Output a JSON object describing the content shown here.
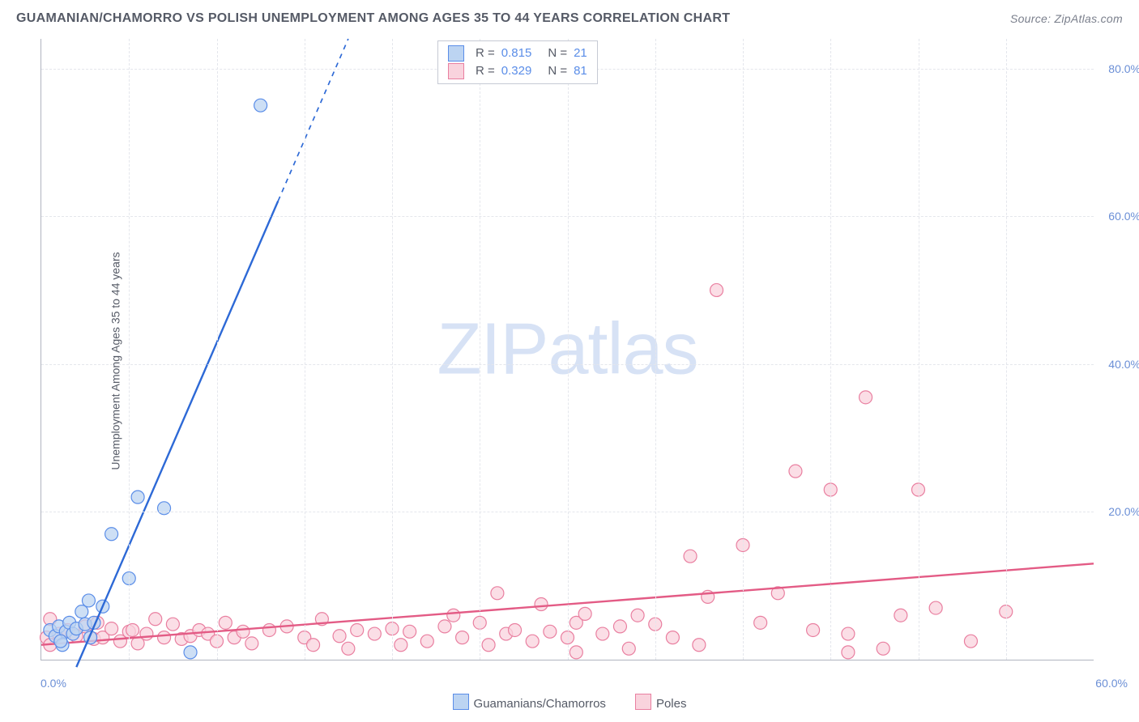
{
  "title": "GUAMANIAN/CHAMORRO VS POLISH UNEMPLOYMENT AMONG AGES 35 TO 44 YEARS CORRELATION CHART",
  "source": "Source: ZipAtlas.com",
  "ylabel": "Unemployment Among Ages 35 to 44 years",
  "watermark_a": "ZIP",
  "watermark_b": "atlas",
  "chart": {
    "type": "scatter",
    "xlim": [
      0,
      60
    ],
    "ylim": [
      0,
      84
    ],
    "x_ticks": [
      0,
      60
    ],
    "y_ticks": [
      20,
      40,
      60,
      80
    ],
    "x_tick_labels": [
      "0.0%",
      "60.0%"
    ],
    "y_tick_labels": [
      "20.0%",
      "40.0%",
      "60.0%",
      "80.0%"
    ],
    "background_color": "#ffffff",
    "grid_color": "#e4e6ec",
    "axis_color": "#b0b4c0",
    "text_color": "#555a66",
    "tick_text_color": "#6b8fd6",
    "marker_radius": 8,
    "marker_stroke_width": 1.2,
    "line_width": 2.4,
    "series": [
      {
        "name": "Guamanians/Chamorros",
        "r": "0.815",
        "n": "21",
        "fill_color": "#bcd4f2",
        "stroke_color": "#5a8de8",
        "line_color": "#2d69d6",
        "trend": {
          "x1": 2.0,
          "y1": -1.0,
          "x2": 17.5,
          "y2": 84.0,
          "dash_from_x": 13.5
        },
        "points": [
          [
            0.5,
            4.0
          ],
          [
            0.8,
            3.2
          ],
          [
            1.0,
            4.5
          ],
          [
            1.2,
            2.0
          ],
          [
            1.4,
            3.8
          ],
          [
            1.6,
            5.0
          ],
          [
            1.8,
            3.5
          ],
          [
            2.0,
            4.2
          ],
          [
            2.3,
            6.5
          ],
          [
            2.5,
            4.8
          ],
          [
            2.7,
            8.0
          ],
          [
            3.0,
            5.0
          ],
          [
            3.5,
            7.2
          ],
          [
            4.0,
            17.0
          ],
          [
            5.0,
            11.0
          ],
          [
            5.5,
            22.0
          ],
          [
            7.0,
            20.5
          ],
          [
            8.5,
            1.0
          ],
          [
            12.5,
            75.0
          ],
          [
            1.1,
            2.5
          ],
          [
            2.8,
            3.0
          ]
        ]
      },
      {
        "name": "Poles",
        "r": "0.329",
        "n": "81",
        "fill_color": "#f9d3dd",
        "stroke_color": "#e97fa0",
        "line_color": "#e35b85",
        "trend": {
          "x1": 0,
          "y1": 2.0,
          "x2": 60,
          "y2": 13.0,
          "dash_from_x": 60
        },
        "points": [
          [
            0.3,
            3.0
          ],
          [
            0.5,
            5.5
          ],
          [
            0.5,
            2.0
          ],
          [
            1,
            3.5
          ],
          [
            1.5,
            4.0
          ],
          [
            2,
            3.2
          ],
          [
            2.5,
            4.5
          ],
          [
            3,
            2.8
          ],
          [
            3.2,
            5.0
          ],
          [
            3.5,
            3.0
          ],
          [
            4,
            4.2
          ],
          [
            4.5,
            2.5
          ],
          [
            5,
            3.8
          ],
          [
            5.2,
            4.0
          ],
          [
            5.5,
            2.2
          ],
          [
            6,
            3.5
          ],
          [
            6.5,
            5.5
          ],
          [
            7,
            3.0
          ],
          [
            7.5,
            4.8
          ],
          [
            8,
            2.8
          ],
          [
            8.5,
            3.2
          ],
          [
            9,
            4.0
          ],
          [
            9.5,
            3.5
          ],
          [
            10,
            2.5
          ],
          [
            10.5,
            5.0
          ],
          [
            11,
            3.0
          ],
          [
            11.5,
            3.8
          ],
          [
            12,
            2.2
          ],
          [
            13,
            4.0
          ],
          [
            14,
            4.5
          ],
          [
            15,
            3.0
          ],
          [
            15.5,
            2.0
          ],
          [
            16,
            5.5
          ],
          [
            17,
            3.2
          ],
          [
            17.5,
            1.5
          ],
          [
            18,
            4.0
          ],
          [
            19,
            3.5
          ],
          [
            20,
            4.2
          ],
          [
            20.5,
            2.0
          ],
          [
            21,
            3.8
          ],
          [
            22,
            2.5
          ],
          [
            23,
            4.5
          ],
          [
            23.5,
            6.0
          ],
          [
            24,
            3.0
          ],
          [
            25,
            5.0
          ],
          [
            25.5,
            2.0
          ],
          [
            26,
            9.0
          ],
          [
            26.5,
            3.5
          ],
          [
            27,
            4.0
          ],
          [
            28,
            2.5
          ],
          [
            28.5,
            7.5
          ],
          [
            29,
            3.8
          ],
          [
            30,
            3.0
          ],
          [
            30.5,
            5.0
          ],
          [
            30.5,
            1.0
          ],
          [
            31,
            6.2
          ],
          [
            32,
            3.5
          ],
          [
            33,
            4.5
          ],
          [
            33.5,
            1.5
          ],
          [
            34,
            6.0
          ],
          [
            35,
            4.8
          ],
          [
            36,
            3.0
          ],
          [
            37,
            14.0
          ],
          [
            37.5,
            2.0
          ],
          [
            38,
            8.5
          ],
          [
            38.5,
            50.0
          ],
          [
            40,
            15.5
          ],
          [
            41,
            5.0
          ],
          [
            42,
            9.0
          ],
          [
            43,
            25.5
          ],
          [
            44,
            4.0
          ],
          [
            45,
            23.0
          ],
          [
            46,
            3.5
          ],
          [
            47,
            35.5
          ],
          [
            48,
            1.5
          ],
          [
            49,
            6.0
          ],
          [
            50,
            23.0
          ],
          [
            51,
            7.0
          ],
          [
            53,
            2.5
          ],
          [
            55,
            6.5
          ],
          [
            46,
            1.0
          ]
        ]
      }
    ]
  },
  "legend_series_labels": [
    "Guamanians/Chamorros",
    "Poles"
  ]
}
